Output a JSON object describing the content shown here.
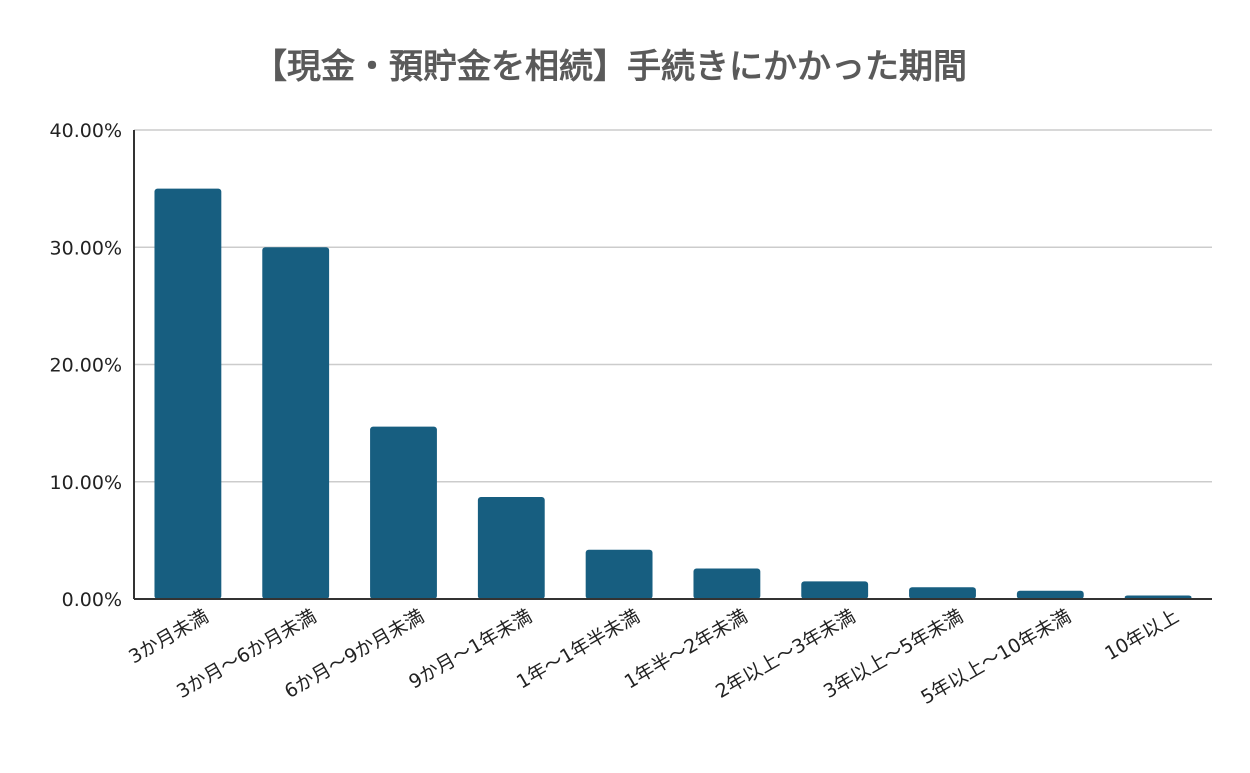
{
  "chart_data": {
    "type": "bar",
    "title": "【現金・預貯金を相続】手続きにかかった期間",
    "xlabel": "",
    "ylabel": "",
    "categories": [
      "3か月未満",
      "3か月～6か月未満",
      "6か月～9か月未満",
      "9か月～1年未満",
      "1年～1年半未満",
      "1年半～2年未満",
      "2年以上～3年未満",
      "3年以上～5年未満",
      "5年以上～10年未満",
      "10年以上"
    ],
    "values": [
      35.0,
      30.0,
      14.7,
      8.7,
      4.2,
      2.6,
      1.5,
      1.0,
      0.7,
      0.3
    ],
    "ylim": [
      0,
      40
    ],
    "yticks": [
      "0.00%",
      "10.00%",
      "20.00%",
      "30.00%",
      "40.00%"
    ],
    "ytick_values": [
      0,
      10,
      20,
      30,
      40
    ],
    "grid": true,
    "bar_color": "#175e80"
  }
}
